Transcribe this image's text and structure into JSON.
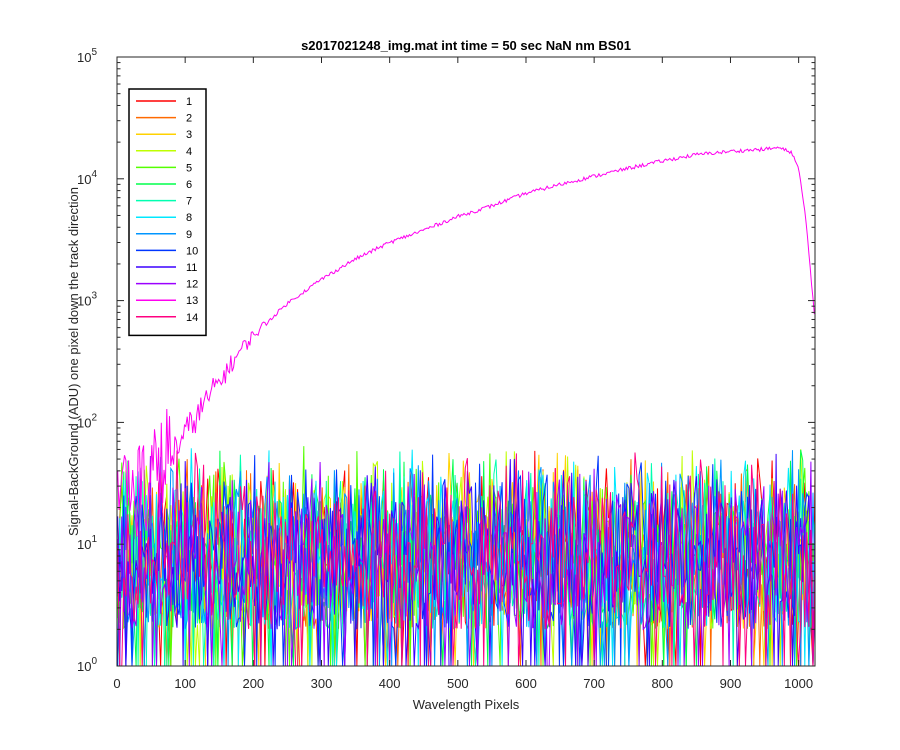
{
  "chart_data": {
    "type": "line",
    "title": "s2017021248_img.mat int time = 50 sec  NaN nm BS01",
    "xlabel": "Wavelength Pixels",
    "ylabel": "Signal-BackGround (ADU) one pixel down the track direction",
    "xlim": [
      0,
      1024
    ],
    "ylim": [
      1,
      100000
    ],
    "yscale": "log",
    "grid": false,
    "legend_placement": "top-left",
    "x_ticks": [
      "0",
      "100",
      "200",
      "300",
      "400",
      "500",
      "600",
      "700",
      "800",
      "900",
      "1000"
    ],
    "y_ticks": [
      {
        "base": "10",
        "exp": "0"
      },
      {
        "base": "10",
        "exp": "1"
      },
      {
        "base": "10",
        "exp": "2"
      },
      {
        "base": "10",
        "exp": "3"
      },
      {
        "base": "10",
        "exp": "4"
      },
      {
        "base": "10",
        "exp": "5"
      }
    ],
    "noise_series_range": [
      2,
      70
    ],
    "series": [
      {
        "name": "1",
        "color": "#ff0000",
        "profile": "noise"
      },
      {
        "name": "2",
        "color": "#ff6a00",
        "profile": "noise"
      },
      {
        "name": "3",
        "color": "#ffd200",
        "profile": "noise"
      },
      {
        "name": "4",
        "color": "#bfff00",
        "profile": "noise"
      },
      {
        "name": "5",
        "color": "#55ff00",
        "profile": "noise"
      },
      {
        "name": "6",
        "color": "#00ff4c",
        "profile": "noise"
      },
      {
        "name": "7",
        "color": "#00ffb0",
        "profile": "noise"
      },
      {
        "name": "8",
        "color": "#00e8ff",
        "profile": "noise"
      },
      {
        "name": "9",
        "color": "#0096ff",
        "profile": "noise"
      },
      {
        "name": "10",
        "color": "#0036ff",
        "profile": "noise"
      },
      {
        "name": "11",
        "color": "#3c00ff",
        "profile": "noise"
      },
      {
        "name": "12",
        "color": "#9c00ff",
        "profile": "noise"
      },
      {
        "name": "13",
        "color": "#ff00f0",
        "profile": "signal",
        "x": [
          40,
          60,
          80,
          100,
          120,
          140,
          160,
          180,
          200,
          250,
          300,
          350,
          400,
          450,
          500,
          550,
          600,
          650,
          700,
          750,
          800,
          850,
          900,
          950,
          970,
          990,
          1000,
          1010,
          1020,
          1024
        ],
        "y": [
          30,
          40,
          55,
          80,
          120,
          180,
          260,
          380,
          520,
          950,
          1500,
          2200,
          3000,
          3800,
          4900,
          6000,
          7600,
          9000,
          10500,
          12200,
          14000,
          15800,
          16800,
          17500,
          18000,
          16500,
          12000,
          5000,
          1200,
          700
        ]
      },
      {
        "name": "14",
        "color": "#ff0080",
        "profile": "noise"
      }
    ]
  }
}
